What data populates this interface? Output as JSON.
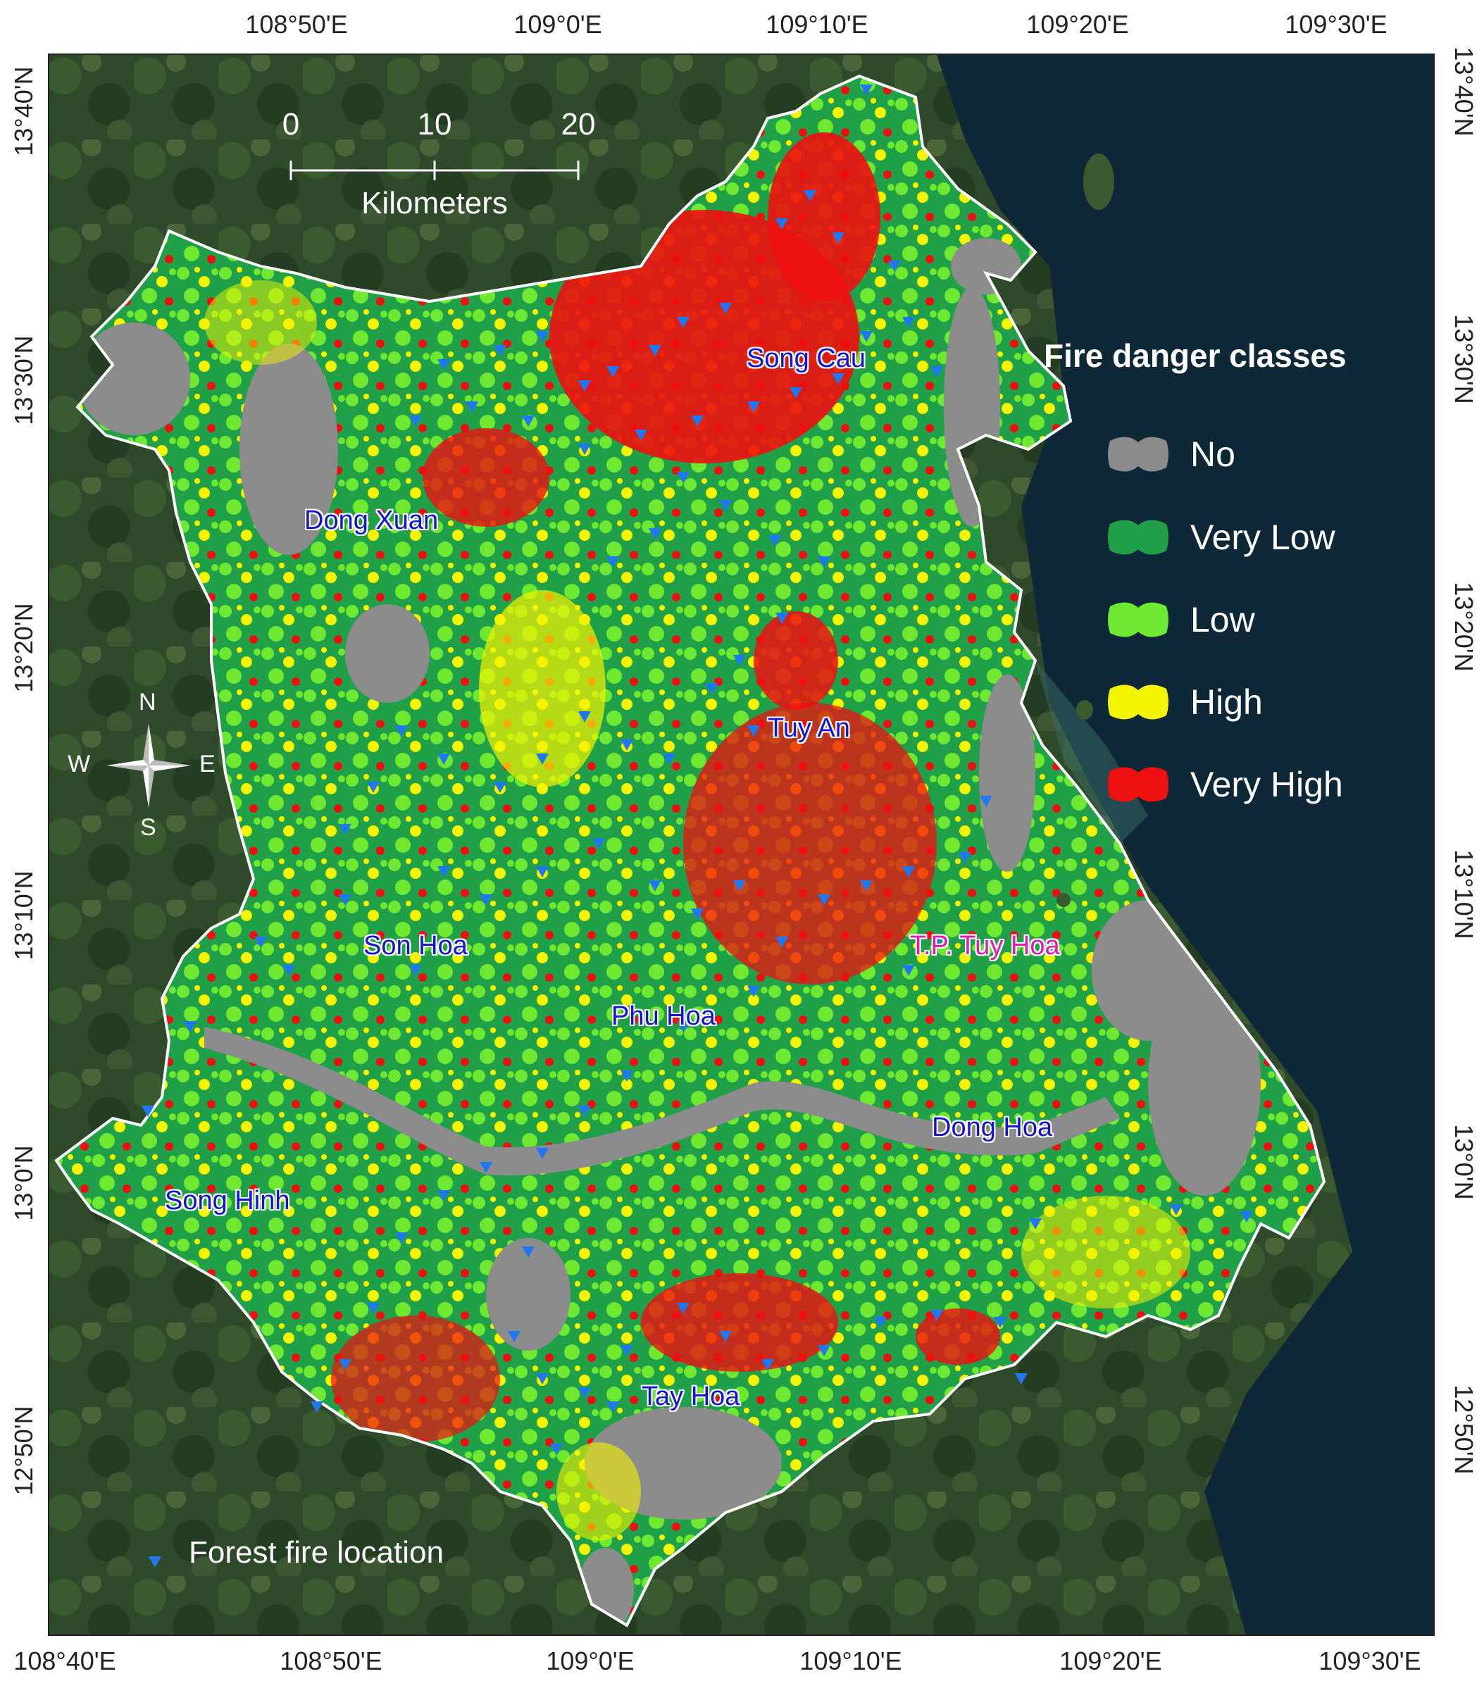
{
  "axes": {
    "top_ticks": [
      "108°50'E",
      "109°0'E",
      "109°10'E",
      "109°20'E",
      "109°30'E"
    ],
    "bottom_ticks": [
      "108°40'E",
      "108°50'E",
      "109°0'E",
      "109°10'E",
      "109°20'E",
      "109°30'E"
    ],
    "left_ticks": [
      "13°40'N",
      "13°30'N",
      "13°20'N",
      "13°10'N",
      "13°0'N",
      "12°50'N"
    ],
    "right_ticks": [
      "13°40'N",
      "13°30'N",
      "13°20'N",
      "13°10'N",
      "13°0'N",
      "12°50'N"
    ]
  },
  "scale_bar": {
    "labels": [
      "0",
      "10",
      "20"
    ],
    "unit": "Kilometers"
  },
  "compass": {
    "n": "N",
    "s": "S",
    "e": "E",
    "w": "W"
  },
  "legend": {
    "title": "Fire danger classes",
    "classes": [
      {
        "label": "No",
        "color": "#8c8c8c"
      },
      {
        "label": "Very Low",
        "color": "#21a04a"
      },
      {
        "label": "Low",
        "color": "#6ee830"
      },
      {
        "label": "High",
        "color": "#f4f400"
      },
      {
        "label": "Very High",
        "color": "#ee1010"
      }
    ]
  },
  "fire_legend": {
    "label": "Forest fire location",
    "color": "#1f78f0"
  },
  "districts": [
    {
      "name": "Song Cau",
      "kind": "district"
    },
    {
      "name": "Dong Xuan",
      "kind": "district"
    },
    {
      "name": "Tuy An",
      "kind": "district"
    },
    {
      "name": "Son Hoa",
      "kind": "district"
    },
    {
      "name": "T.P. Tuy Hoa",
      "kind": "city"
    },
    {
      "name": "Phu Hoa",
      "kind": "district"
    },
    {
      "name": "Dong Hoa",
      "kind": "district"
    },
    {
      "name": "Song Hinh",
      "kind": "district"
    },
    {
      "name": "Tay Hoa",
      "kind": "district"
    }
  ],
  "colors": {
    "sea": "#0f2838",
    "land": "#2f4a2a",
    "boundary": "#ffffff"
  }
}
